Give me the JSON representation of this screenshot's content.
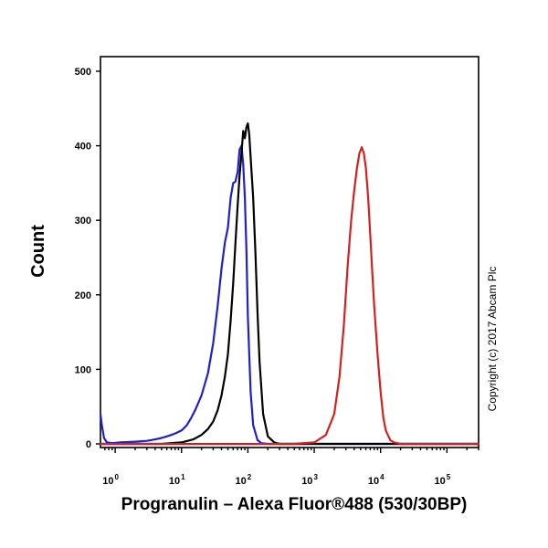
{
  "chart_data": {
    "type": "line",
    "title": "",
    "xlabel": "Progranulin – Alexa Fluor®488 (530/30BP)",
    "ylabel": "Count",
    "xscale": "log",
    "xlim": [
      0.6,
      300000
    ],
    "ylim": [
      0,
      500
    ],
    "yticks": [
      0,
      100,
      200,
      300,
      400,
      500
    ],
    "xticks": [
      {
        "base": "10",
        "exp": "0",
        "value": 1
      },
      {
        "base": "10",
        "exp": "1",
        "value": 10
      },
      {
        "base": "10",
        "exp": "2",
        "value": 100
      },
      {
        "base": "10",
        "exp": "3",
        "value": 1000
      },
      {
        "base": "10",
        "exp": "4",
        "value": 10000
      },
      {
        "base": "10",
        "exp": "5",
        "value": 100000
      }
    ],
    "grid": false,
    "annotation": "Copyright (c) 2017 Abcam Plc",
    "series": [
      {
        "color": "#1f1fcc",
        "x": [
          0.6,
          0.63,
          0.68,
          0.75,
          0.9,
          1.2,
          2,
          3,
          4,
          5,
          6,
          7,
          8,
          9,
          10,
          12,
          14,
          16,
          20,
          25,
          30,
          35,
          40,
          45,
          50,
          55,
          60,
          65,
          70,
          75,
          80,
          85,
          90,
          95,
          100,
          110,
          120,
          140,
          160,
          200,
          300,
          500,
          1000,
          10000,
          300000
        ],
        "y": [
          40,
          25,
          8,
          2,
          1,
          2,
          3,
          4,
          6,
          8,
          10,
          12,
          14,
          16,
          18,
          25,
          35,
          45,
          65,
          95,
          135,
          185,
          235,
          270,
          290,
          330,
          350,
          352,
          365,
          395,
          400,
          375,
          330,
          260,
          170,
          70,
          25,
          5,
          1,
          0,
          0,
          0,
          0,
          0,
          0
        ]
      },
      {
        "color": "#000000",
        "x": [
          0.6,
          5,
          10,
          15,
          20,
          25,
          30,
          35,
          40,
          45,
          50,
          55,
          60,
          65,
          70,
          75,
          80,
          85,
          90,
          95,
          100,
          105,
          110,
          120,
          130,
          140,
          150,
          170,
          200,
          250,
          300,
          500,
          1000,
          10000,
          300000
        ],
        "y": [
          0,
          0,
          2,
          6,
          12,
          20,
          30,
          45,
          65,
          90,
          120,
          165,
          215,
          270,
          320,
          360,
          390,
          420,
          410,
          425,
          430,
          415,
          385,
          330,
          255,
          175,
          110,
          40,
          10,
          2,
          0,
          0,
          0,
          0,
          0
        ]
      },
      {
        "color": "#d42020",
        "x": [
          0.6,
          500,
          1000,
          1500,
          2000,
          2400,
          2800,
          3200,
          3600,
          4000,
          4400,
          4800,
          5200,
          5600,
          6000,
          6500,
          7000,
          7500,
          8000,
          9000,
          10000,
          11000,
          12000,
          14000,
          16000,
          20000,
          30000,
          300000
        ],
        "y": [
          0,
          0,
          2,
          12,
          40,
          90,
          160,
          240,
          300,
          340,
          370,
          390,
          398,
          390,
          370,
          330,
          280,
          230,
          185,
          120,
          70,
          35,
          18,
          5,
          2,
          0,
          0,
          0
        ]
      }
    ]
  }
}
